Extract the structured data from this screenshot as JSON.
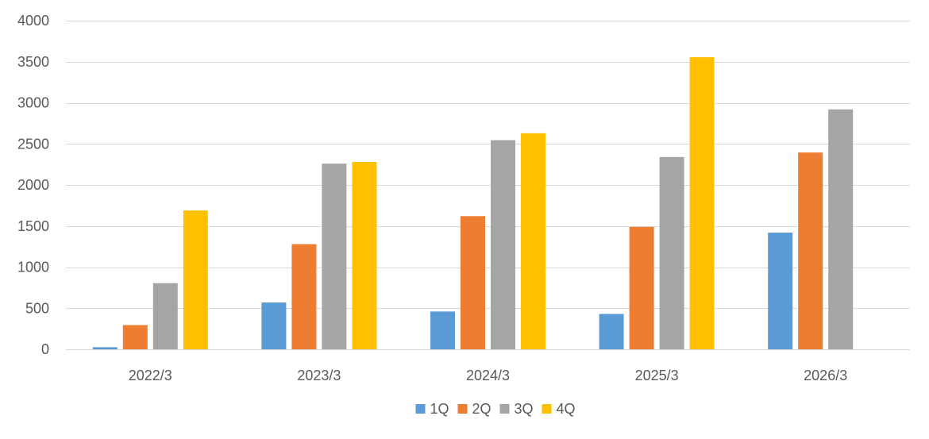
{
  "chart_data": {
    "type": "bar",
    "title": "",
    "xlabel": "",
    "ylabel": "",
    "categories": [
      "2022/3",
      "2023/3",
      "2024/3",
      "2025/3",
      "2026/3"
    ],
    "ylim": [
      0,
      4000
    ],
    "yticks": [
      0,
      500,
      1000,
      1500,
      2000,
      2500,
      3000,
      3500,
      4000
    ],
    "grid": true,
    "legend_position": "bottom",
    "series": [
      {
        "name": "1Q",
        "color": "#5B9BD5",
        "values": [
          25,
          570,
          460,
          430,
          1420
        ]
      },
      {
        "name": "2Q",
        "color": "#ED7D31",
        "values": [
          295,
          1280,
          1620,
          1490,
          2395
        ]
      },
      {
        "name": "3Q",
        "color": "#A5A5A5",
        "values": [
          805,
          2260,
          2545,
          2340,
          2920
        ]
      },
      {
        "name": "4Q",
        "color": "#FFC000",
        "values": [
          1690,
          2280,
          2630,
          3555,
          null
        ]
      }
    ]
  }
}
